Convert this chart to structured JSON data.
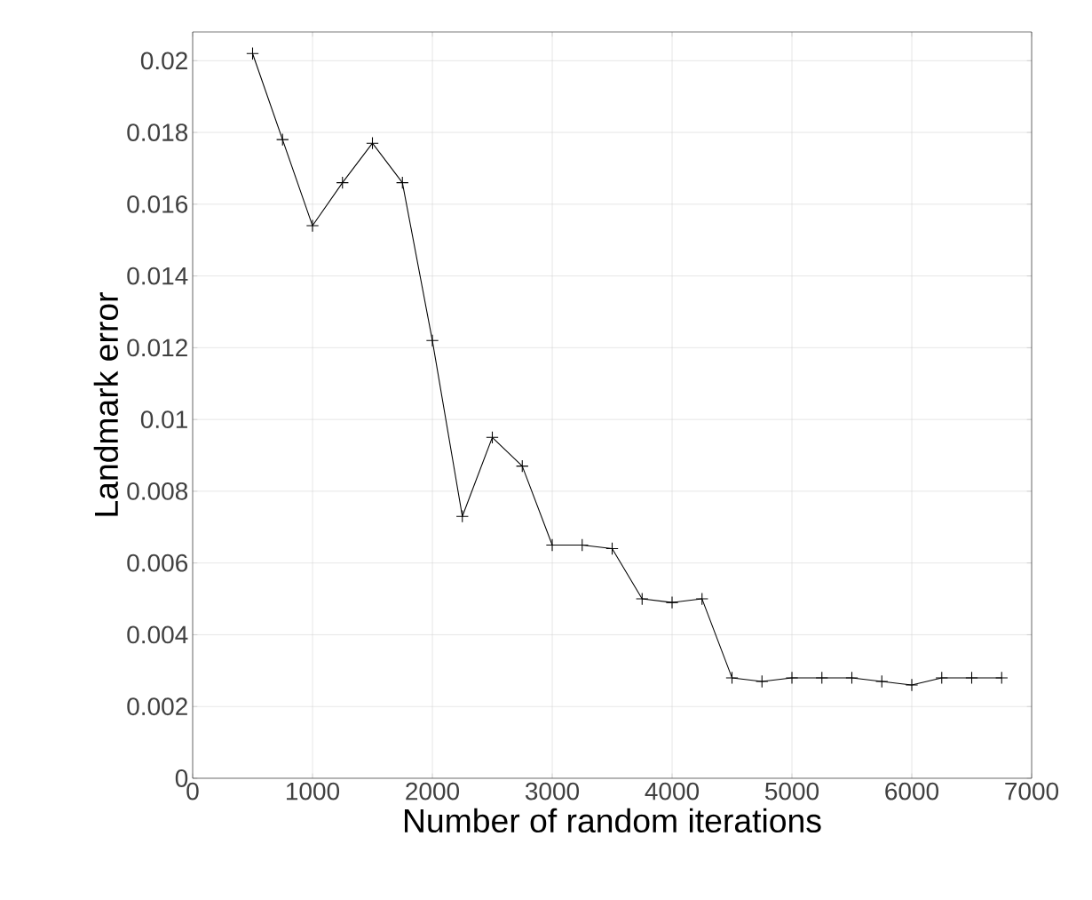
{
  "chart_data": {
    "type": "line",
    "xlabel": "Number of random iterations",
    "ylabel": "Landmark error",
    "x": [
      500,
      750,
      1000,
      1250,
      1500,
      1750,
      2000,
      2250,
      2500,
      2750,
      3000,
      3250,
      3500,
      3750,
      4000,
      4250,
      4500,
      4750,
      5000,
      5250,
      5500,
      5750,
      6000,
      6250,
      6500,
      6750
    ],
    "series": [
      {
        "color": "#000000",
        "values": [
          0.0202,
          0.0178,
          0.0154,
          0.0166,
          0.0177,
          0.0166,
          0.0122,
          0.0073,
          0.0095,
          0.0087,
          0.0065,
          0.0065,
          0.0064,
          0.005,
          0.0049,
          0.005,
          0.0028,
          0.0027,
          0.0028,
          0.0028,
          0.0028,
          0.0027,
          0.0026,
          0.0028,
          0.0028,
          0.0028
        ]
      }
    ],
    "xlim": [
      0,
      7000
    ],
    "ylim": [
      0,
      0.0208
    ],
    "xticks": [
      0,
      1000,
      2000,
      3000,
      4000,
      5000,
      6000,
      7000
    ],
    "yticks": [
      0,
      0.002,
      0.004,
      0.006,
      0.008,
      0.01,
      0.012,
      0.014,
      0.016,
      0.018,
      0.02
    ],
    "grid": true,
    "marker": "cross",
    "line_style": "solid"
  }
}
